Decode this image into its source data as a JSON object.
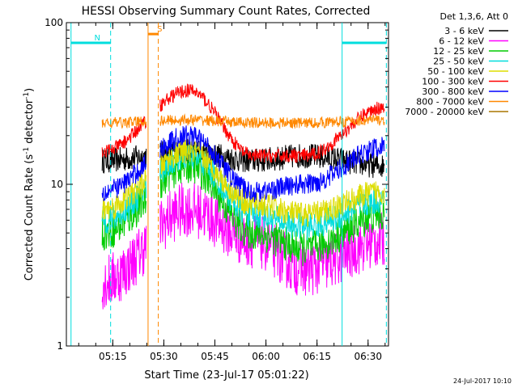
{
  "chart_data": {
    "type": "line",
    "title": "HESSI Observing Summary Count Rates, Corrected",
    "xlabel": "Start Time (23-Jul-17 05:01:22)",
    "ylabel_parts": [
      "Corrected Count Rate (s",
      "-1",
      " detector",
      "-1",
      ")"
    ],
    "y_scale": "log",
    "ylim": [
      1,
      100
    ],
    "y_ticks": [
      {
        "v": 1,
        "label": "1"
      },
      {
        "v": 10,
        "label": "10"
      },
      {
        "v": 100,
        "label": "100"
      }
    ],
    "xlim_min": [
      1.37,
      77.0
    ],
    "x_ticks": [
      {
        "m": 13.63,
        "label": "05:15"
      },
      {
        "m": 28.63,
        "label": "05:30"
      },
      {
        "m": 43.63,
        "label": "05:45"
      },
      {
        "m": 58.63,
        "label": "06:00"
      },
      {
        "m": 73.63,
        "label": "06:15"
      },
      {
        "m": 88.63,
        "label": "06:30"
      }
    ],
    "legend_header": "Det 1,3,6, Att 0",
    "series": [
      {
        "name": "3 - 6 keV",
        "color": "#000000",
        "levels": [
          14,
          16,
          14,
          15,
          13
        ],
        "noise": 0.18
      },
      {
        "name": "6 - 12 keV",
        "color": "#ff00ff",
        "levels": [
          2.5,
          7.0,
          4.5,
          3.0,
          4.5
        ],
        "noise": 0.4
      },
      {
        "name": "12 - 25 keV",
        "color": "#00cc00",
        "levels": [
          5.0,
          13.0,
          5.0,
          4.0,
          6.5
        ],
        "noise": 0.25
      },
      {
        "name": "25 - 50 keV",
        "color": "#00dddd",
        "levels": [
          6.0,
          15.0,
          6.5,
          5.5,
          8.0
        ],
        "noise": 0.2
      },
      {
        "name": "50 - 100 keV",
        "color": "#dddd00",
        "levels": [
          7.0,
          16.0,
          7.5,
          6.5,
          9.0
        ],
        "noise": 0.18
      },
      {
        "name": "100 - 300 keV",
        "color": "#ff0000",
        "levels": [
          16,
          38,
          15,
          15,
          30
        ],
        "noise": 0.1
      },
      {
        "name": "300 - 800 keV",
        "color": "#0000ff",
        "levels": [
          9,
          20,
          9,
          10,
          17
        ],
        "noise": 0.15
      },
      {
        "name": "800 - 7000 keV",
        "color": "#ff8800",
        "levels": [
          24,
          25,
          24,
          24,
          25
        ],
        "noise": 0.08
      },
      {
        "name": "7000 - 20000 keV",
        "color": "#aa7700",
        "levels": [],
        "noise": 0
      }
    ],
    "markers": [
      {
        "label": "N",
        "color": "#00dddd",
        "start": 1.37,
        "end": 13.0,
        "flag_value": 75
      },
      {
        "label": "S",
        "color": "#ff8800",
        "start": 24.0,
        "end": 27.0,
        "flag_value": 85
      },
      {
        "label": "",
        "color": "#00dddd",
        "start": 81.0,
        "end": 94.0,
        "flag_value": 75
      }
    ],
    "data_gaps": [
      [
        10,
        25.5
      ],
      [
        75,
        95
      ]
    ],
    "data_start": 10.5,
    "data_end": 93.5
  },
  "timestamp": "24-Jul-2017 10:10"
}
